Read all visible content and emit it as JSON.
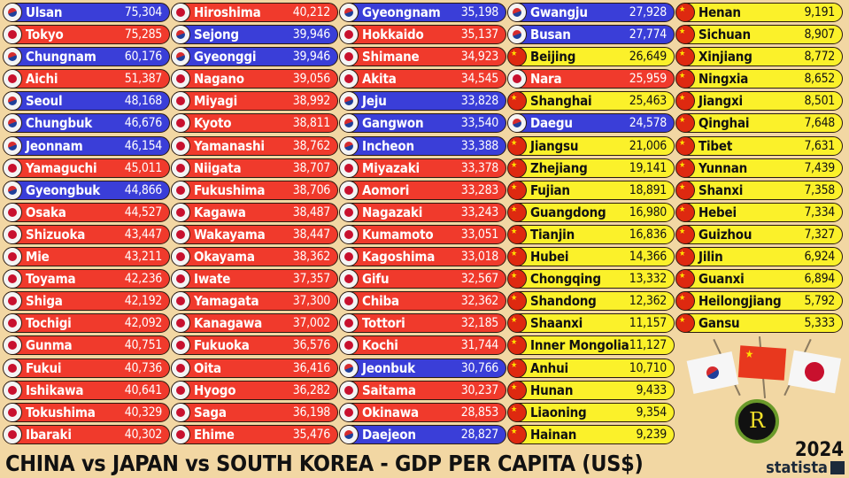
{
  "chart_data": {
    "type": "table",
    "title": "CHINA vs JAPAN vs SOUTH KOREA - GDP PER CAPITA (US$)",
    "year": "2024",
    "source": "statista",
    "columns": [
      "region",
      "country",
      "gdp_per_capita_usd"
    ],
    "colors": {
      "South Korea": "#3a3ed8",
      "Japan": "#f03a2c",
      "China": "#fbf12a"
    },
    "rows": [
      [
        "Ulsan",
        "kr",
        "75,304"
      ],
      [
        "Tokyo",
        "jp",
        "75,285"
      ],
      [
        "Chungnam",
        "kr",
        "60,176"
      ],
      [
        "Aichi",
        "jp",
        "51,387"
      ],
      [
        "Seoul",
        "kr",
        "48,168"
      ],
      [
        "Chungbuk",
        "kr",
        "46,676"
      ],
      [
        "Jeonnam",
        "kr",
        "46,154"
      ],
      [
        "Yamaguchi",
        "jp",
        "45,011"
      ],
      [
        "Gyeongbuk",
        "kr",
        "44,866"
      ],
      [
        "Osaka",
        "jp",
        "44,527"
      ],
      [
        "Shizuoka",
        "jp",
        "43,447"
      ],
      [
        "Mie",
        "jp",
        "43,211"
      ],
      [
        "Toyama",
        "jp",
        "42,236"
      ],
      [
        "Shiga",
        "jp",
        "42,192"
      ],
      [
        "Tochigi",
        "jp",
        "42,092"
      ],
      [
        "Gunma",
        "jp",
        "40,751"
      ],
      [
        "Fukui",
        "jp",
        "40,736"
      ],
      [
        "Ishikawa",
        "jp",
        "40,641"
      ],
      [
        "Tokushima",
        "jp",
        "40,329"
      ],
      [
        "Ibaraki",
        "jp",
        "40,302"
      ],
      [
        "Hiroshima",
        "jp",
        "40,212"
      ],
      [
        "Sejong",
        "kr",
        "39,946"
      ],
      [
        "Gyeonggi",
        "kr",
        "39,946"
      ],
      [
        "Nagano",
        "jp",
        "39,056"
      ],
      [
        "Miyagi",
        "jp",
        "38,992"
      ],
      [
        "Kyoto",
        "jp",
        "38,811"
      ],
      [
        "Yamanashi",
        "jp",
        "38,762"
      ],
      [
        "Niigata",
        "jp",
        "38,707"
      ],
      [
        "Fukushima",
        "jp",
        "38,706"
      ],
      [
        "Kagawa",
        "jp",
        "38,487"
      ],
      [
        "Wakayama",
        "jp",
        "38,447"
      ],
      [
        "Okayama",
        "jp",
        "38,362"
      ],
      [
        "Iwate",
        "jp",
        "37,357"
      ],
      [
        "Yamagata",
        "jp",
        "37,300"
      ],
      [
        "Kanagawa",
        "jp",
        "37,002"
      ],
      [
        "Fukuoka",
        "jp",
        "36,576"
      ],
      [
        "Oita",
        "jp",
        "36,416"
      ],
      [
        "Hyogo",
        "jp",
        "36,282"
      ],
      [
        "Saga",
        "jp",
        "36,198"
      ],
      [
        "Ehime",
        "jp",
        "35,476"
      ],
      [
        "Gyeongnam",
        "kr",
        "35,198"
      ],
      [
        "Hokkaido",
        "jp",
        "35,137"
      ],
      [
        "Shimane",
        "jp",
        "34,923"
      ],
      [
        "Akita",
        "jp",
        "34,545"
      ],
      [
        "Jeju",
        "kr",
        "33,828"
      ],
      [
        "Gangwon",
        "kr",
        "33,540"
      ],
      [
        "Incheon",
        "kr",
        "33,388"
      ],
      [
        "Miyazaki",
        "jp",
        "33,378"
      ],
      [
        "Aomori",
        "jp",
        "33,283"
      ],
      [
        "Nagazaki",
        "jp",
        "33,243"
      ],
      [
        "Kumamoto",
        "jp",
        "33,051"
      ],
      [
        "Kagoshima",
        "jp",
        "33,018"
      ],
      [
        "Gifu",
        "jp",
        "32,567"
      ],
      [
        "Chiba",
        "jp",
        "32,362"
      ],
      [
        "Tottori",
        "jp",
        "32,185"
      ],
      [
        "Kochi",
        "jp",
        "31,744"
      ],
      [
        "Jeonbuk",
        "kr",
        "30,766"
      ],
      [
        "Saitama",
        "jp",
        "30,237"
      ],
      [
        "Okinawa",
        "jp",
        "28,853"
      ],
      [
        "Daejeon",
        "kr",
        "28,827"
      ],
      [
        "Gwangju",
        "kr",
        "27,928"
      ],
      [
        "Busan",
        "kr",
        "27,774"
      ],
      [
        "Beijing",
        "cn",
        "26,649"
      ],
      [
        "Nara",
        "jp",
        "25,959"
      ],
      [
        "Shanghai",
        "cn",
        "25,463"
      ],
      [
        "Daegu",
        "kr",
        "24,578"
      ],
      [
        "Jiangsu",
        "cn",
        "21,006"
      ],
      [
        "Zhejiang",
        "cn",
        "19,141"
      ],
      [
        "Fujian",
        "cn",
        "18,891"
      ],
      [
        "Guangdong",
        "cn",
        "16,980"
      ],
      [
        "Tianjin",
        "cn",
        "16,836"
      ],
      [
        "Hubei",
        "cn",
        "14,366"
      ],
      [
        "Chongqing",
        "cn",
        "13,332"
      ],
      [
        "Shandong",
        "cn",
        "12,362"
      ],
      [
        "Shaanxi",
        "cn",
        "11,157"
      ],
      [
        "Inner Mongolia",
        "cn",
        "11,127"
      ],
      [
        "Anhui",
        "cn",
        "10,710"
      ],
      [
        "Hunan",
        "cn",
        "9,433"
      ],
      [
        "Liaoning",
        "cn",
        "9,354"
      ],
      [
        "Hainan",
        "cn",
        "9,239"
      ],
      [
        "Henan",
        "cn",
        "9,191"
      ],
      [
        "Sichuan",
        "cn",
        "8,907"
      ],
      [
        "Xinjiang",
        "cn",
        "8,772"
      ],
      [
        "Ningxia",
        "cn",
        "8,652"
      ],
      [
        "Jiangxi",
        "cn",
        "8,501"
      ],
      [
        "Qinghai",
        "cn",
        "7,648"
      ],
      [
        "Tibet",
        "cn",
        "7,631"
      ],
      [
        "Yunnan",
        "cn",
        "7,439"
      ],
      [
        "Shanxi",
        "cn",
        "7,358"
      ],
      [
        "Hebei",
        "cn",
        "7,334"
      ],
      [
        "Guizhou",
        "cn",
        "7,327"
      ],
      [
        "Jilin",
        "cn",
        "6,924"
      ],
      [
        "Guanxi",
        "cn",
        "6,894"
      ],
      [
        "Heilongjiang",
        "cn",
        "5,792"
      ],
      [
        "Gansu",
        "cn",
        "5,333"
      ]
    ]
  },
  "footer": {
    "title": "CHINA vs JAPAN vs SOUTH KOREA - GDP PER CAPITA (US$)",
    "year": "2024",
    "brand": "statista"
  },
  "logo": {
    "letter": "R"
  }
}
